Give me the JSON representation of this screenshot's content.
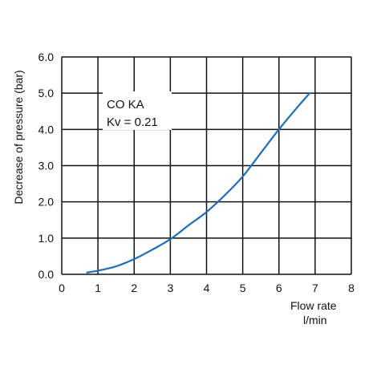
{
  "chart_data": {
    "type": "line",
    "title": "",
    "annotation": {
      "line1": "CO KA",
      "line2": "Kv = 0.21"
    },
    "ylabel": "Decrease of pressure (bar)",
    "xlabel": {
      "line1": "Flow rate",
      "line2": "l/min"
    },
    "xlim": [
      0,
      8
    ],
    "ylim": [
      0,
      6
    ],
    "x_ticks": [
      "0",
      "1",
      "2",
      "3",
      "4",
      "5",
      "6",
      "7",
      "8"
    ],
    "y_ticks": [
      "0.0",
      "1.0",
      "2.0",
      "3.0",
      "4.0",
      "5.0",
      "6.0"
    ],
    "grid": true,
    "series": [
      {
        "color": "#1f6db5",
        "x": [
          0.7,
          1.0,
          1.5,
          2.0,
          2.5,
          3.0,
          3.5,
          4.0,
          4.5,
          5.0,
          5.5,
          6.0,
          6.5,
          6.85
        ],
        "y": [
          0.05,
          0.1,
          0.22,
          0.42,
          0.68,
          0.97,
          1.35,
          1.72,
          2.18,
          2.7,
          3.35,
          4.0,
          4.6,
          5.0
        ]
      }
    ]
  }
}
